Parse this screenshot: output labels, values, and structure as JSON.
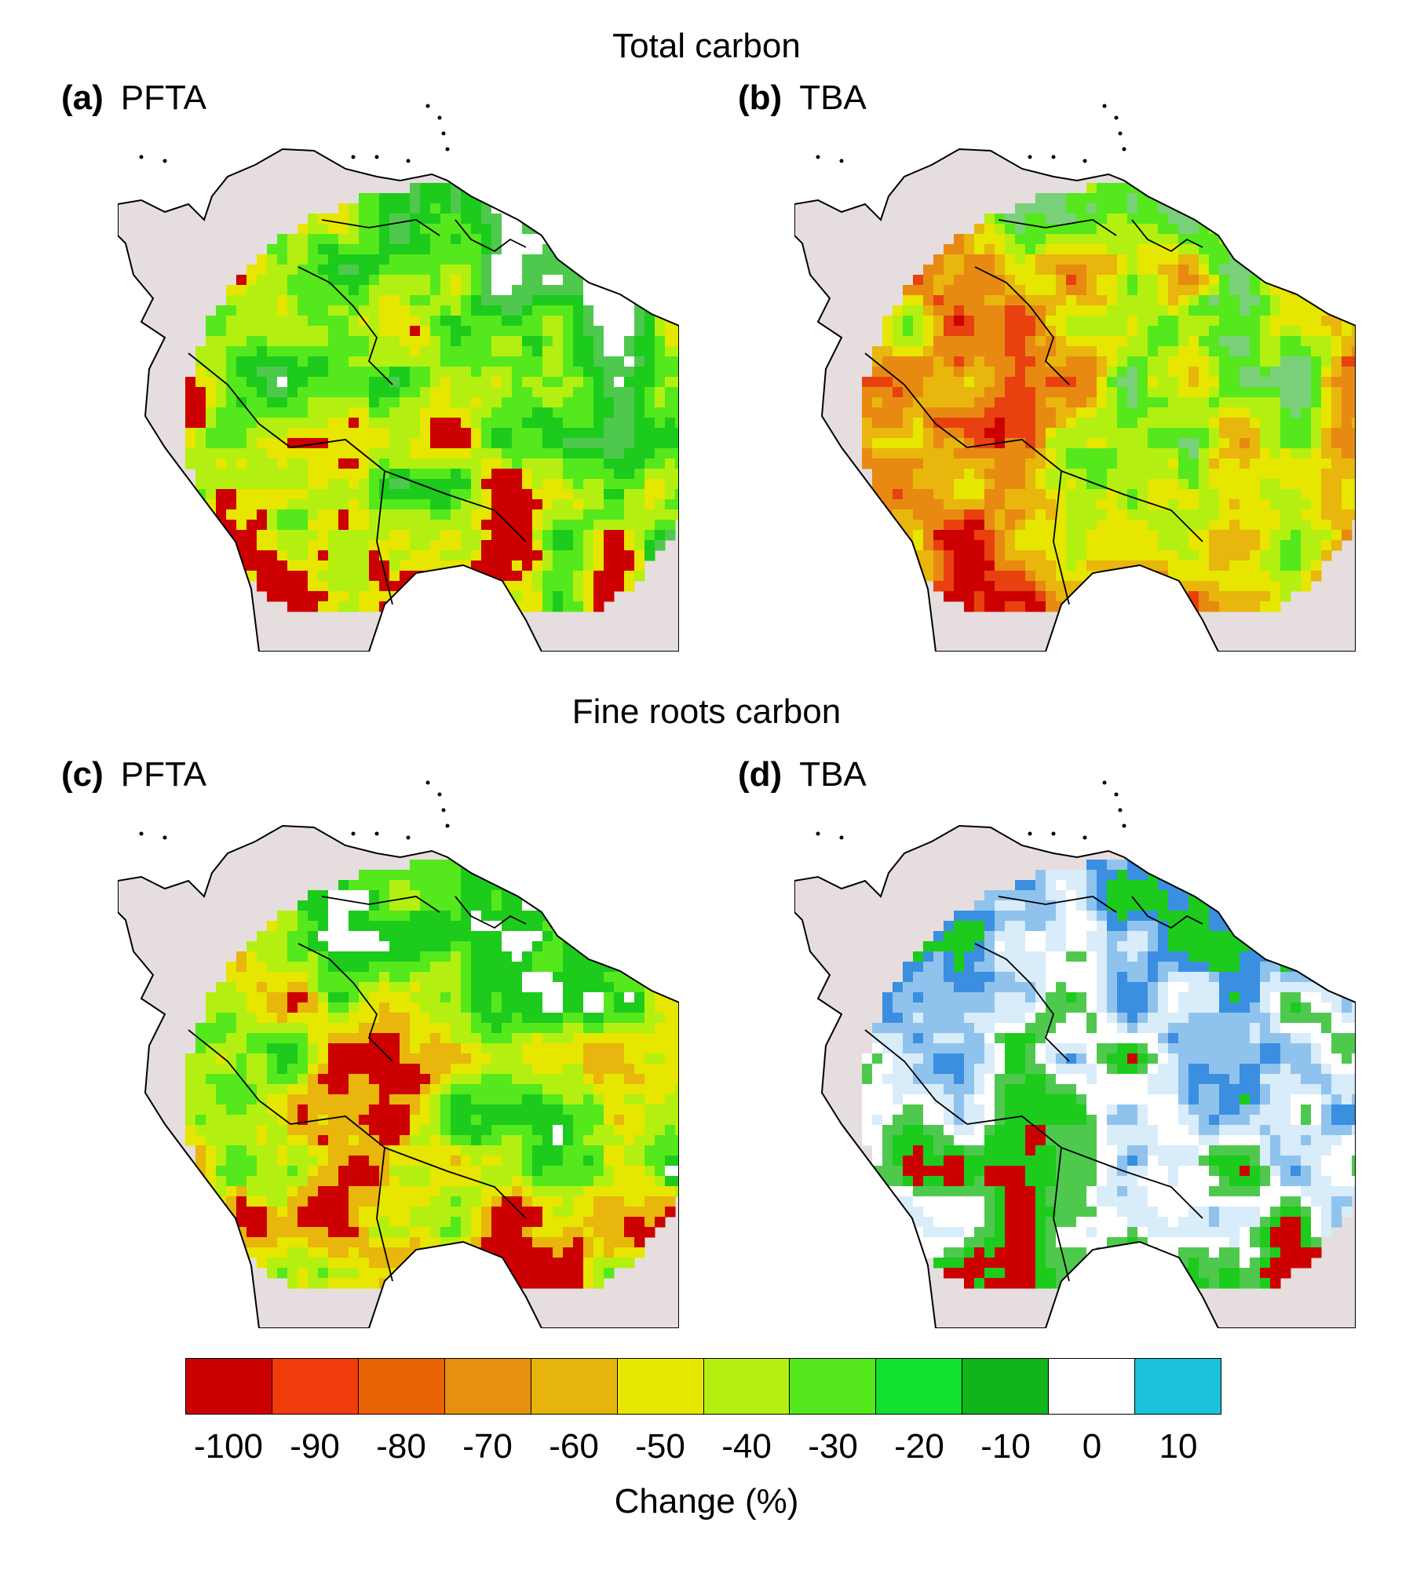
{
  "sections": {
    "top_title": "Total carbon",
    "bottom_title": "Fine roots carbon"
  },
  "panels": [
    {
      "letter": "(a)",
      "name": "PFTA",
      "palette": [
        "#cc0000",
        "#cc0000",
        "#e6e600",
        "#b3f011",
        "#55e81c",
        "#1ccb1c",
        "#4ec94e",
        "#ffffff"
      ]
    },
    {
      "letter": "(b)",
      "name": "TBA",
      "palette": [
        "#cc0000",
        "#e8410f",
        "#e88a12",
        "#e8b60c",
        "#e6e600",
        "#b3f011",
        "#55e81c",
        "#7ad17a"
      ]
    },
    {
      "letter": "(c)",
      "name": "PFTA",
      "palette": [
        "#cc0000",
        "#cc0000",
        "#e8b60c",
        "#e6e600",
        "#b3f011",
        "#55e81c",
        "#1ccb1c",
        "#ffffff"
      ]
    },
    {
      "letter": "(d)",
      "name": "TBA",
      "palette": [
        "#cc0000",
        "#1ccb1c",
        "#4ec94e",
        "#ffffff",
        "#d9ecf9",
        "#8fc3ee",
        "#3a8fe0",
        "#1ccb1c"
      ]
    }
  ],
  "colorbar": {
    "label": "Change (%)",
    "ticks": [
      "-100",
      "-90",
      "-80",
      "-70",
      "-60",
      "-50",
      "-40",
      "-30",
      "-20",
      "-10",
      "0",
      "10"
    ],
    "colors": [
      "#cc0000",
      "#f03c0a",
      "#ea6307",
      "#e6900f",
      "#e6b40a",
      "#e6e600",
      "#b3f011",
      "#55e81c",
      "#11e030",
      "#11b519",
      "#ffffff",
      "#1cc1dc"
    ]
  },
  "colors": {
    "land": "#e6dede",
    "border": "#000000"
  }
}
